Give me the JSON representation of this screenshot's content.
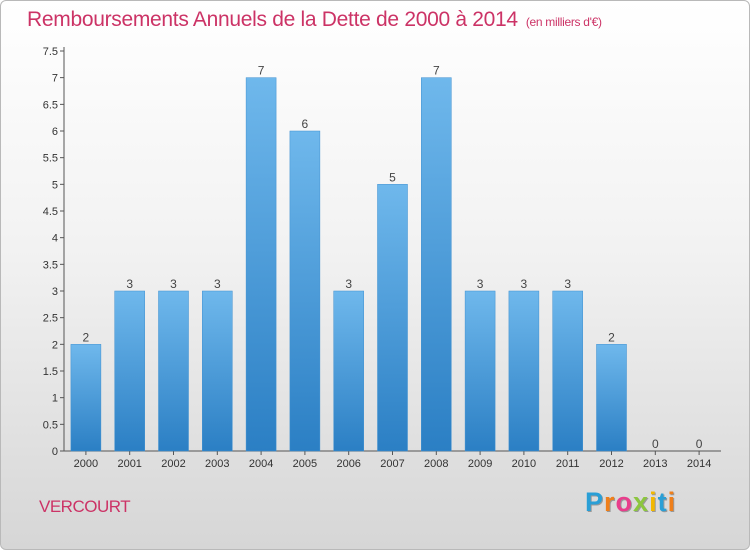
{
  "title": "Remboursements Annuels de la Dette de 2000 à 2014",
  "unit_note": "(en milliers d'€)",
  "commune": "VERCOURT",
  "logo": {
    "letters": [
      "P",
      "r",
      "o",
      "x",
      "i",
      "t",
      "i"
    ],
    "colors": [
      "#2a9fd6",
      "#ef7f1a",
      "#e83e8c",
      "#8cc63f",
      "#f2b800",
      "#2a9fd6",
      "#ef7f1a"
    ]
  },
  "colors": {
    "bar_top": "#6fb8ec",
    "bar_bottom": "#2b7fc4",
    "title": "#cc3366"
  },
  "chart_data": {
    "type": "bar",
    "title": "Remboursements Annuels de la Dette de 2000 à 2014",
    "xlabel": "",
    "ylabel": "",
    "categories": [
      "2000",
      "2001",
      "2002",
      "2003",
      "2004",
      "2005",
      "2006",
      "2007",
      "2008",
      "2009",
      "2010",
      "2011",
      "2012",
      "2013",
      "2014"
    ],
    "values": [
      2,
      3,
      3,
      3,
      7,
      6,
      3,
      5,
      7,
      3,
      3,
      3,
      2,
      0,
      0
    ],
    "data_labels": [
      "2",
      "3",
      "3",
      "3",
      "7",
      "6",
      "3",
      "5",
      "7",
      "3",
      "3",
      "3",
      "2",
      "0",
      "0"
    ],
    "ylim": [
      0,
      7.5
    ],
    "y_ticks": [
      0,
      0.5,
      1,
      1.5,
      2,
      2.5,
      3,
      3.5,
      4,
      4.5,
      5,
      5.5,
      6,
      6.5,
      7,
      7.5
    ],
    "y_tick_labels": [
      "0",
      "0.5",
      "1",
      "1.5",
      "2",
      "2.5",
      "3",
      "3.5",
      "4",
      "4.5",
      "5",
      "5.5",
      "6",
      "6.5",
      "7",
      "7.5"
    ],
    "grid": false,
    "legend": "none"
  }
}
